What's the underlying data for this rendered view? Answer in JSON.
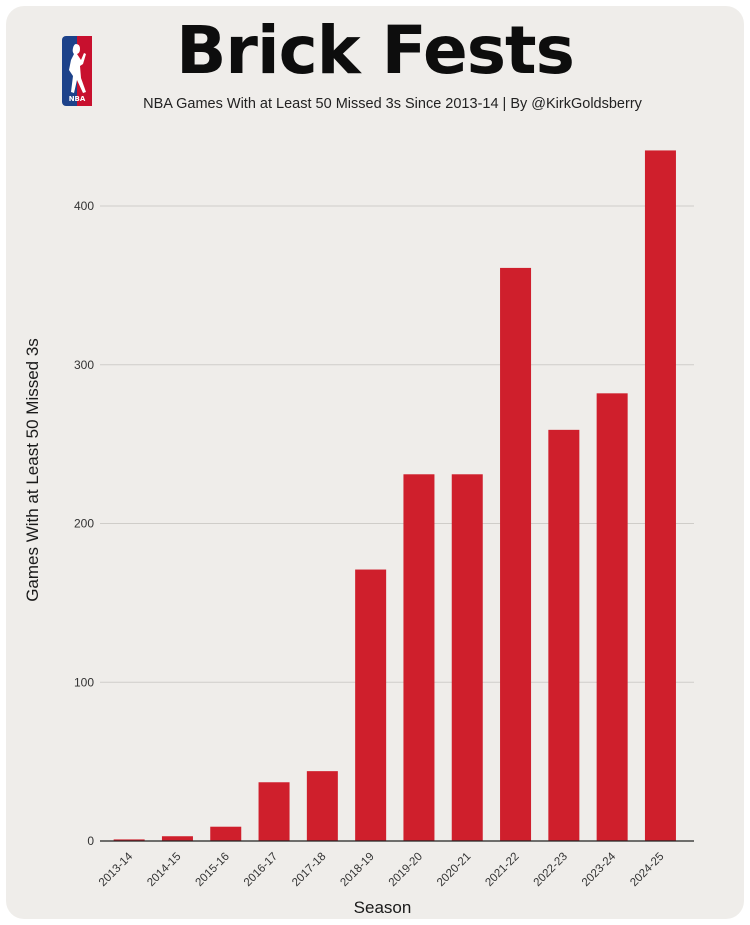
{
  "header": {
    "title": "Brick Fests",
    "subtitle": "NBA Games With at Least 50 Missed 3s Since 2013-14 | By @KirkGoldsberry",
    "logo_text": "NBA"
  },
  "colors": {
    "bar": "#cf1f2c",
    "background": "#efedea",
    "grid": "#cfcdc9",
    "logo_blue": "#1d428a",
    "logo_red": "#c8102e"
  },
  "chart_data": {
    "type": "bar",
    "title": "Brick Fests",
    "xlabel": "Season",
    "ylabel": "Games With at Least 50 Missed 3s",
    "categories": [
      "2013-14",
      "2014-15",
      "2015-16",
      "2016-17",
      "2017-18",
      "2018-19",
      "2019-20",
      "2020-21",
      "2021-22",
      "2022-23",
      "2023-24",
      "2024-25"
    ],
    "values": [
      1,
      3,
      9,
      37,
      44,
      171,
      231,
      231,
      361,
      259,
      282,
      435
    ],
    "ylim": [
      0,
      460
    ],
    "yticks": [
      0,
      100,
      200,
      300,
      400
    ],
    "grid": true,
    "legend": "none"
  }
}
